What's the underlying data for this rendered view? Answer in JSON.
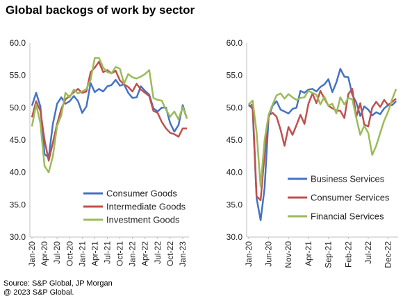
{
  "title": "Global backogs of work by sector",
  "footer": {
    "source": "Source: S&P Global, JP Morgan",
    "copyright": "@ 2023 S&P Global."
  },
  "chart_data": [
    {
      "type": "line",
      "title": "",
      "xlabel": "",
      "ylabel": "",
      "ylim": [
        30,
        60
      ],
      "yticks": [
        "60.0",
        "55.0",
        "50.0",
        "45.0",
        "40.0",
        "35.0",
        "30.0"
      ],
      "xtick_labels": [
        "Jan-20",
        "Apr-20",
        "Jul-20",
        "Oct-20",
        "Jan-21",
        "Apr-21",
        "Jul-21",
        "Oct-21",
        "Jan-22",
        "Apr-22",
        "Jul-22",
        "Oct-22",
        "Jan-23"
      ],
      "grid": false,
      "legend_position": "bottom-left",
      "x": [
        "Jan-20",
        "Feb-20",
        "Mar-20",
        "Apr-20",
        "May-20",
        "Jun-20",
        "Jul-20",
        "Aug-20",
        "Sep-20",
        "Oct-20",
        "Nov-20",
        "Dec-20",
        "Jan-21",
        "Feb-21",
        "Mar-21",
        "Apr-21",
        "May-21",
        "Jun-21",
        "Jul-21",
        "Aug-21",
        "Sep-21",
        "Oct-21",
        "Nov-21",
        "Dec-21",
        "Jan-22",
        "Feb-22",
        "Mar-22",
        "Apr-22",
        "May-22",
        "Jun-22",
        "Jul-22",
        "Aug-22",
        "Sep-22",
        "Oct-22",
        "Nov-22",
        "Dec-22",
        "Jan-23",
        "Feb-23"
      ],
      "series": [
        {
          "name": "Consumer Goods",
          "color": "#4472c4",
          "values": [
            50.3,
            52.3,
            50.2,
            42.8,
            42.3,
            47.5,
            50.6,
            51.6,
            50.6,
            51.0,
            51.8,
            51.0,
            49.2,
            50.2,
            53.8,
            52.4,
            52.9,
            52.5,
            53.3,
            53.5,
            54.3,
            53.4,
            53.6,
            52.3,
            51.5,
            51.6,
            53.3,
            52.6,
            52.0,
            49.9,
            49.4,
            50.0,
            50.0,
            47.6,
            46.3,
            47.3,
            50.4,
            48.3
          ]
        },
        {
          "name": "Intermediate Goods",
          "color": "#c0504d",
          "values": [
            48.5,
            51.0,
            49.5,
            45.0,
            41.8,
            44.6,
            47.5,
            49.8,
            51.3,
            51.8,
            52.4,
            52.9,
            52.3,
            52.5,
            55.5,
            56.2,
            57.1,
            55.5,
            55.8,
            55.3,
            55.7,
            54.2,
            53.6,
            53.2,
            52.5,
            53.7,
            52.8,
            52.3,
            51.8,
            49.5,
            49.2,
            47.8,
            46.8,
            46.1,
            45.9,
            45.5,
            46.8,
            46.8
          ]
        },
        {
          "name": "Investment Goods",
          "color": "#9bbb59",
          "values": [
            47.1,
            50.5,
            47.6,
            41.0,
            40.0,
            42.5,
            47.2,
            48.8,
            52.3,
            51.6,
            52.8,
            52.2,
            52.5,
            52.9,
            54.3,
            57.7,
            57.7,
            56.2,
            55.5,
            55.3,
            56.3,
            56.0,
            53.7,
            55.2,
            54.7,
            54.5,
            54.8,
            55.2,
            55.8,
            51.5,
            51.2,
            51.1,
            49.7,
            48.6,
            49.4,
            48.2,
            50.1,
            48.3
          ]
        }
      ]
    },
    {
      "type": "line",
      "title": "",
      "xlabel": "",
      "ylabel": "",
      "ylim": [
        30,
        60
      ],
      "yticks": [
        "60.0",
        "55.0",
        "50.0",
        "45.0",
        "40.0",
        "35.0",
        "30.0"
      ],
      "xtick_labels": [
        "Jan-20",
        "Jun-20",
        "Nov-20",
        "Apr-21",
        "Sep-21",
        "Feb-22",
        "Jul-22",
        "Dec-22"
      ],
      "grid": false,
      "legend_position": "bottom-right",
      "x": [
        "Jan-20",
        "Feb-20",
        "Mar-20",
        "Apr-20",
        "May-20",
        "Jun-20",
        "Jul-20",
        "Aug-20",
        "Sep-20",
        "Oct-20",
        "Nov-20",
        "Dec-20",
        "Jan-21",
        "Feb-21",
        "Mar-21",
        "Apr-21",
        "May-21",
        "Jun-21",
        "Jul-21",
        "Aug-21",
        "Sep-21",
        "Oct-21",
        "Nov-21",
        "Dec-21",
        "Jan-22",
        "Feb-22",
        "Mar-22",
        "Apr-22",
        "May-22",
        "Jun-22",
        "Jul-22",
        "Aug-22",
        "Sep-22",
        "Oct-22",
        "Nov-22",
        "Dec-22",
        "Jan-23",
        "Feb-23"
      ],
      "series": [
        {
          "name": "Business Services",
          "color": "#4472c4",
          "values": [
            50.5,
            49.8,
            36.0,
            32.6,
            37.6,
            48.5,
            50.3,
            51.0,
            49.7,
            49.4,
            49.1,
            49.8,
            50.0,
            52.6,
            52.3,
            52.8,
            52.9,
            52.5,
            53.2,
            53.6,
            54.4,
            52.4,
            53.9,
            56.0,
            54.8,
            54.7,
            52.0,
            50.8,
            48.7,
            50.2,
            49.7,
            48.8,
            49.3,
            49.0,
            49.9,
            50.4,
            50.4,
            51.0
          ]
        },
        {
          "name": "Consumer Services",
          "color": "#c0504d",
          "values": [
            50.2,
            50.5,
            36.3,
            35.7,
            42.8,
            48.8,
            49.2,
            48.6,
            46.6,
            44.1,
            47.0,
            45.8,
            47.3,
            48.9,
            47.5,
            50.6,
            52.2,
            50.7,
            52.6,
            51.4,
            50.3,
            49.9,
            49.6,
            49.5,
            48.4,
            52.1,
            52.9,
            48.6,
            50.7,
            47.4,
            47.1,
            50.0,
            50.9,
            50.1,
            51.2,
            50.4,
            50.9,
            51.4
          ]
        },
        {
          "name": "Financial Services",
          "color": "#9bbb59",
          "values": [
            50.5,
            51.1,
            46.2,
            37.8,
            45.0,
            48.9,
            50.5,
            51.9,
            52.2,
            51.4,
            52.1,
            51.6,
            51.2,
            51.5,
            51.6,
            52.6,
            52.3,
            52.0,
            50.5,
            51.7,
            50.3,
            50.6,
            49.1,
            51.6,
            50.5,
            51.5,
            51.3,
            48.4,
            45.8,
            47.2,
            46.1,
            42.7,
            44.1,
            46.1,
            48.0,
            49.4,
            51.3,
            52.9
          ]
        }
      ]
    }
  ]
}
